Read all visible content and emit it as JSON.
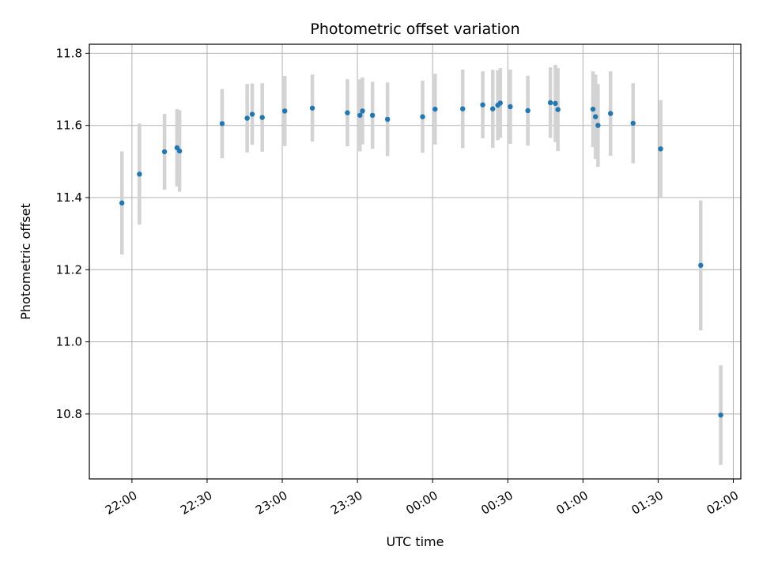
{
  "chart_data": {
    "type": "scatter",
    "title": "Photometric offset variation",
    "xlabel": "UTC time",
    "ylabel": "Photometric offset",
    "x_axis_type": "time",
    "xlim": [
      "21:43",
      "02:03"
    ],
    "ylim": [
      10.62,
      11.825
    ],
    "grid": true,
    "x_ticks": [
      "22:00",
      "22:30",
      "23:00",
      "23:30",
      "00:00",
      "00:30",
      "01:00",
      "01:30",
      "02:00"
    ],
    "y_ticks": [
      10.8,
      11.0,
      11.2,
      11.4,
      11.6,
      11.8
    ],
    "point_color": "#1f77b4",
    "errorbar_color": "#d3d3d3",
    "points": [
      {
        "time": "21:56",
        "y": 11.385,
        "err": 0.143
      },
      {
        "time": "22:03",
        "y": 11.465,
        "err": 0.14
      },
      {
        "time": "22:13",
        "y": 11.527,
        "err": 0.105
      },
      {
        "time": "22:18",
        "y": 11.538,
        "err": 0.107
      },
      {
        "time": "22:19",
        "y": 11.529,
        "err": 0.113
      },
      {
        "time": "22:36",
        "y": 11.605,
        "err": 0.096
      },
      {
        "time": "22:46",
        "y": 11.62,
        "err": 0.095
      },
      {
        "time": "22:48",
        "y": 11.631,
        "err": 0.085
      },
      {
        "time": "22:52",
        "y": 11.622,
        "err": 0.095
      },
      {
        "time": "23:01",
        "y": 11.64,
        "err": 0.097
      },
      {
        "time": "23:12",
        "y": 11.648,
        "err": 0.093
      },
      {
        "time": "23:26",
        "y": 11.635,
        "err": 0.093
      },
      {
        "time": "23:31",
        "y": 11.628,
        "err": 0.1
      },
      {
        "time": "23:32",
        "y": 11.64,
        "err": 0.093
      },
      {
        "time": "23:36",
        "y": 11.628,
        "err": 0.093
      },
      {
        "time": "23:42",
        "y": 11.617,
        "err": 0.102
      },
      {
        "time": "23:56",
        "y": 11.624,
        "err": 0.1
      },
      {
        "time": "00:01",
        "y": 11.645,
        "err": 0.098
      },
      {
        "time": "00:12",
        "y": 11.646,
        "err": 0.109
      },
      {
        "time": "00:20",
        "y": 11.657,
        "err": 0.093
      },
      {
        "time": "00:24",
        "y": 11.646,
        "err": 0.108
      },
      {
        "time": "00:26",
        "y": 11.656,
        "err": 0.097
      },
      {
        "time": "00:27",
        "y": 11.662,
        "err": 0.097
      },
      {
        "time": "00:31",
        "y": 11.652,
        "err": 0.103
      },
      {
        "time": "00:38",
        "y": 11.641,
        "err": 0.097
      },
      {
        "time": "00:47",
        "y": 11.663,
        "err": 0.098
      },
      {
        "time": "00:49",
        "y": 11.661,
        "err": 0.107
      },
      {
        "time": "00:50",
        "y": 11.644,
        "err": 0.115
      },
      {
        "time": "01:04",
        "y": 11.645,
        "err": 0.105
      },
      {
        "time": "01:05",
        "y": 11.624,
        "err": 0.117
      },
      {
        "time": "01:06",
        "y": 11.6,
        "err": 0.115
      },
      {
        "time": "01:11",
        "y": 11.633,
        "err": 0.117
      },
      {
        "time": "01:20",
        "y": 11.606,
        "err": 0.111
      },
      {
        "time": "01:31",
        "y": 11.535,
        "err": 0.135
      },
      {
        "time": "01:47",
        "y": 11.212,
        "err": 0.18
      },
      {
        "time": "01:55",
        "y": 10.797,
        "err": 0.138
      }
    ]
  }
}
